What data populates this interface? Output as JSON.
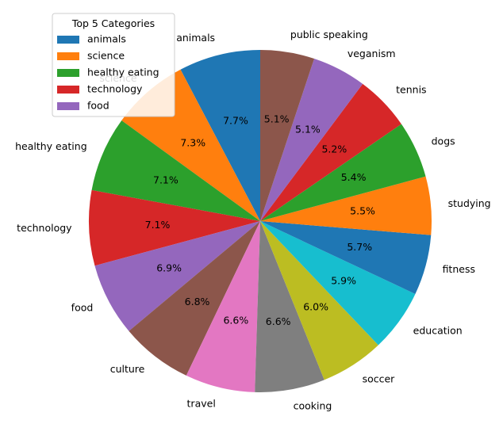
{
  "chart_data": {
    "type": "pie",
    "title": "",
    "start_angle_deg": 90,
    "direction": "counterclockwise",
    "categories": [
      "animals",
      "science",
      "healthy eating",
      "technology",
      "food",
      "culture",
      "travel",
      "cooking",
      "soccer",
      "education",
      "fitness",
      "studying",
      "dogs",
      "tennis",
      "veganism",
      "public speaking"
    ],
    "values": [
      7.7,
      7.3,
      7.1,
      7.1,
      6.9,
      6.8,
      6.6,
      6.6,
      6.0,
      5.9,
      5.7,
      5.5,
      5.4,
      5.2,
      5.1,
      5.1
    ],
    "labels": [
      "7.7%",
      "7.3%",
      "7.1%",
      "7.1%",
      "6.9%",
      "6.8%",
      "6.6%",
      "6.6%",
      "6.0%",
      "5.9%",
      "5.7%",
      "5.5%",
      "5.4%",
      "5.2%",
      "5.1%",
      "5.1%"
    ],
    "colors": [
      "#1f77b4",
      "#ff7f0e",
      "#2ca02c",
      "#d62728",
      "#9467bd",
      "#8c564b",
      "#e377c2",
      "#7f7f7f",
      "#bcbd22",
      "#17becf",
      "#1f77b4",
      "#ff7f0e",
      "#2ca02c",
      "#d62728",
      "#9467bd",
      "#8c564b"
    ],
    "legend": {
      "title": "Top 5 Categories",
      "placement": "top-left",
      "entries": [
        "animals",
        "science",
        "healthy eating",
        "technology",
        "food"
      ],
      "colors": [
        "#1f77b4",
        "#ff7f0e",
        "#2ca02c",
        "#d62728",
        "#9467bd"
      ]
    }
  }
}
